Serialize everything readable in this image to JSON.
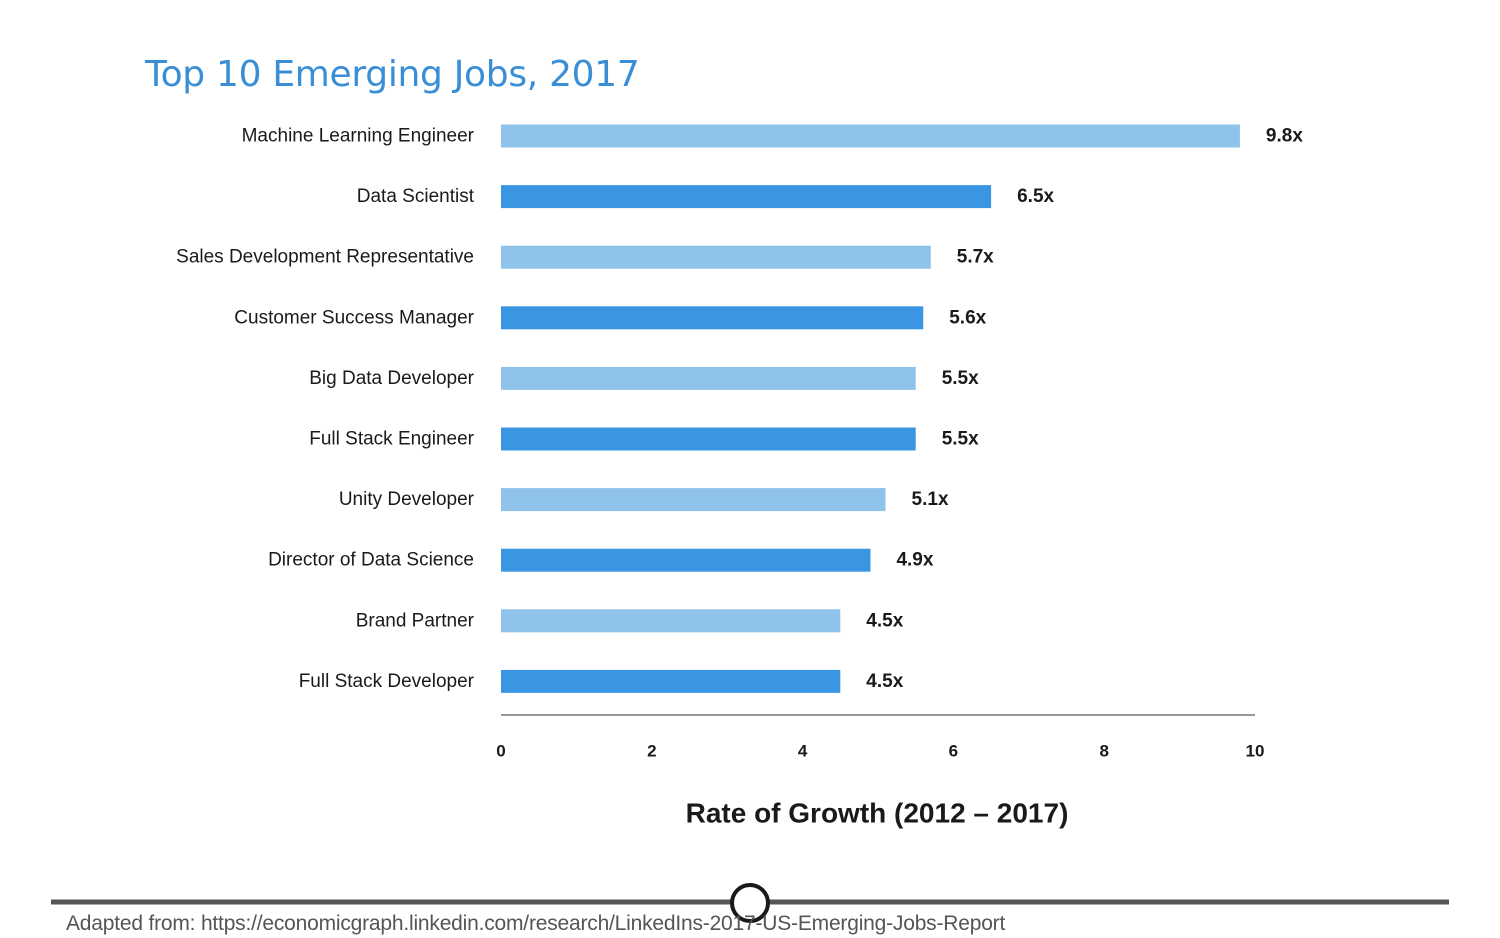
{
  "title": "Top 10 Emerging Jobs, 2017",
  "source": "Adapted from: https://economicgraph.linkedin.com/research/LinkedIns-2017-US-Emerging-Jobs-Report",
  "colors": {
    "title": "#3a8ed6",
    "bar_light": "#8fc3ea",
    "bar_dark": "#3a96e3",
    "axis": "#777777",
    "footer_line": "#555555"
  },
  "chart_data": {
    "type": "bar",
    "orientation": "horizontal",
    "categories": [
      "Machine Learning Engineer",
      "Data Scientist",
      "Sales Development Representative",
      "Customer Success Manager",
      "Big Data Developer",
      "Full Stack Engineer",
      "Unity Developer",
      "Director of Data Science",
      "Brand Partner",
      "Full Stack Developer"
    ],
    "values": [
      9.8,
      6.5,
      5.7,
      5.6,
      5.5,
      5.5,
      5.1,
      4.9,
      4.5,
      4.5
    ],
    "value_labels": [
      "9.8x",
      "6.5x",
      "5.7x",
      "5.6x",
      "5.5x",
      "5.5x",
      "5.1x",
      "4.9x",
      "4.5x",
      "4.5x"
    ],
    "xticks": [
      "0",
      "2",
      "4",
      "6",
      "8",
      "10"
    ],
    "xlim": [
      0,
      10
    ],
    "xlabel": "Rate of Growth (2012 – 2017)",
    "ylabel": "",
    "grid": false,
    "legend": false
  }
}
